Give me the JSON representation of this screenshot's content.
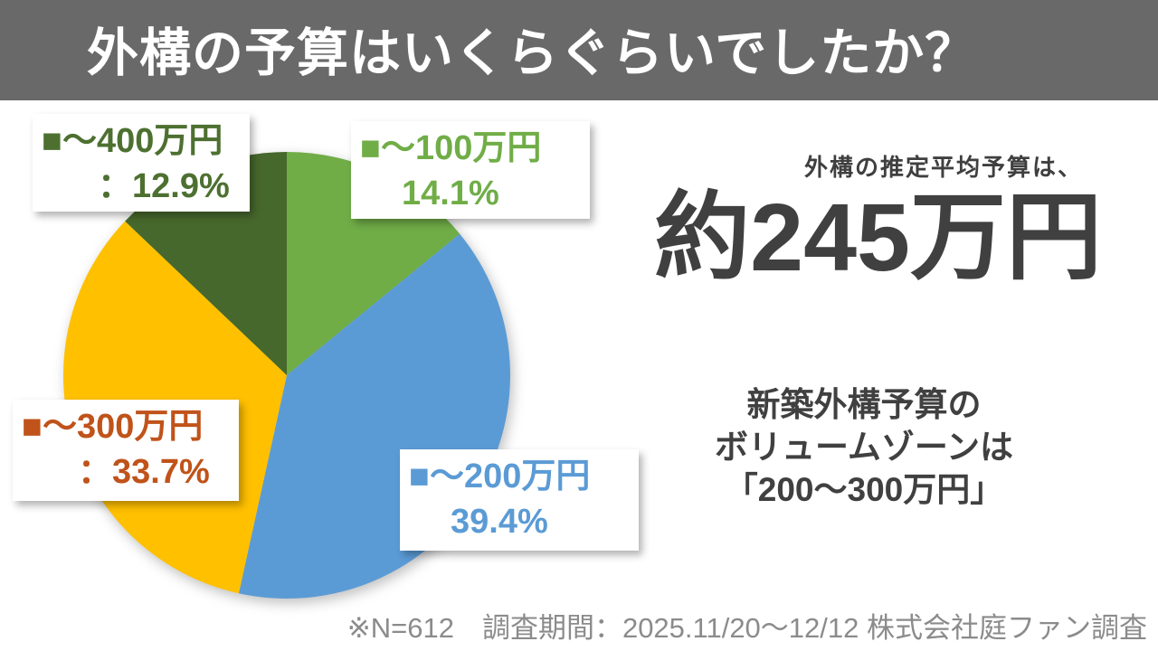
{
  "header": {
    "title": "外構の予算はいくらぐらいでしたか？",
    "bg_color": "#696969",
    "text_color": "#ffffff"
  },
  "chart_data": {
    "type": "pie",
    "title": "外構の予算はいくらぐらいでしたか？",
    "unit": "%",
    "start_angle": "top",
    "direction": "clockwise",
    "categories": [
      "～100万円",
      "～200万円",
      "～300万円",
      "～400万円"
    ],
    "values": [
      14.1,
      39.4,
      33.7,
      12.9
    ],
    "colors": [
      "#70ad47",
      "#5b9bd5",
      "#ffc000",
      "#47682c"
    ],
    "label_colors": [
      "#70ad47",
      "#5b9bd5",
      "#c0531a",
      "#4d7030"
    ],
    "legend_position": "callouts-on-slices"
  },
  "callouts": {
    "c100": {
      "line1": "■～100万円",
      "line2": "14.1%"
    },
    "c200": {
      "line1": "■～200万円",
      "line2": "39.4%"
    },
    "c300": {
      "line1": "■～300万円",
      "line2": "：33.7%"
    },
    "c400": {
      "line1": "■～400万円",
      "line2": "：12.9%"
    }
  },
  "summary": {
    "lead": "外構の推定平均予算は、",
    "headline": "約245万円",
    "note": [
      "新築外構予算の",
      "ボリュームゾーンは",
      "「200〜300万円」"
    ]
  },
  "footer": {
    "note": "※N=612　調査期間：2025.11/20〜12/12 株式会社庭ファン調査"
  }
}
